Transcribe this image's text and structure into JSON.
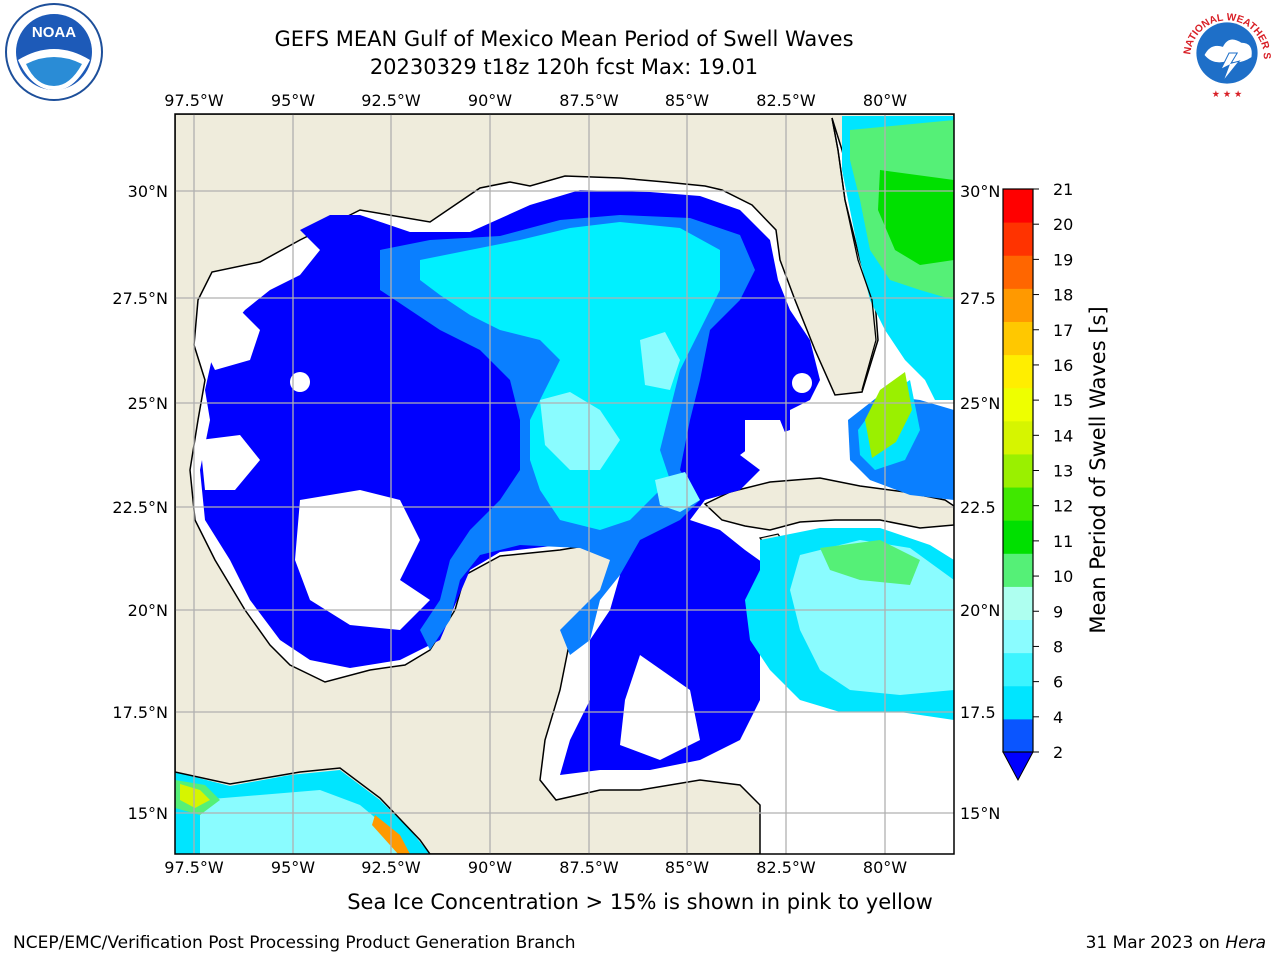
{
  "title": {
    "line1": "GEFS MEAN Gulf of Mexico Mean Period of Swell Waves",
    "line2": "20230329 t18z 120h fcst   Max: 19.01"
  },
  "map": {
    "lon_labels": [
      "97.5°W",
      "95°W",
      "92.5°W",
      "90°W",
      "87.5°W",
      "85°W",
      "82.5°W",
      "80°W"
    ],
    "lat_labels": [
      "30°N",
      "27.5°N",
      "25°N",
      "22.5°N",
      "20°N",
      "17.5°N",
      "15°N"
    ],
    "lat_labels_right": [
      "30°N",
      "27.5",
      "25°N",
      "22.5",
      "20°N",
      "17.5",
      "15°N"
    ],
    "land_color": "#efecdc",
    "grid_color": "#b0b0b0"
  },
  "colorbar": {
    "label": "Mean Period of Swell Waves [s]",
    "ticks": [
      "2",
      "4",
      "6",
      "8",
      "9",
      "10",
      "11",
      "12",
      "13",
      "14",
      "15",
      "16",
      "17",
      "18",
      "19",
      "20",
      "21"
    ],
    "colors": [
      "#0a55ff",
      "#00e5ff",
      "#3cf4ff",
      "#8afcff",
      "#aefff0",
      "#55f077",
      "#00e000",
      "#40e800",
      "#9af000",
      "#d6f500",
      "#eeff00",
      "#ffee00",
      "#ffc800",
      "#ff9900",
      "#ff6600",
      "#ff3300",
      "#ff0000"
    ],
    "extend_color": "#0000ff"
  },
  "footer": {
    "note": "Sea Ice Concentration > 15% is shown in pink to yellow",
    "left": "NCEP/EMC/Verification Post Processing Product Generation Branch",
    "right_date": "31 Mar 2023 on ",
    "right_host": "Hera"
  },
  "logos": {
    "noaa": "NOAA",
    "nws": "NATIONAL WEATHER SERVICE"
  }
}
